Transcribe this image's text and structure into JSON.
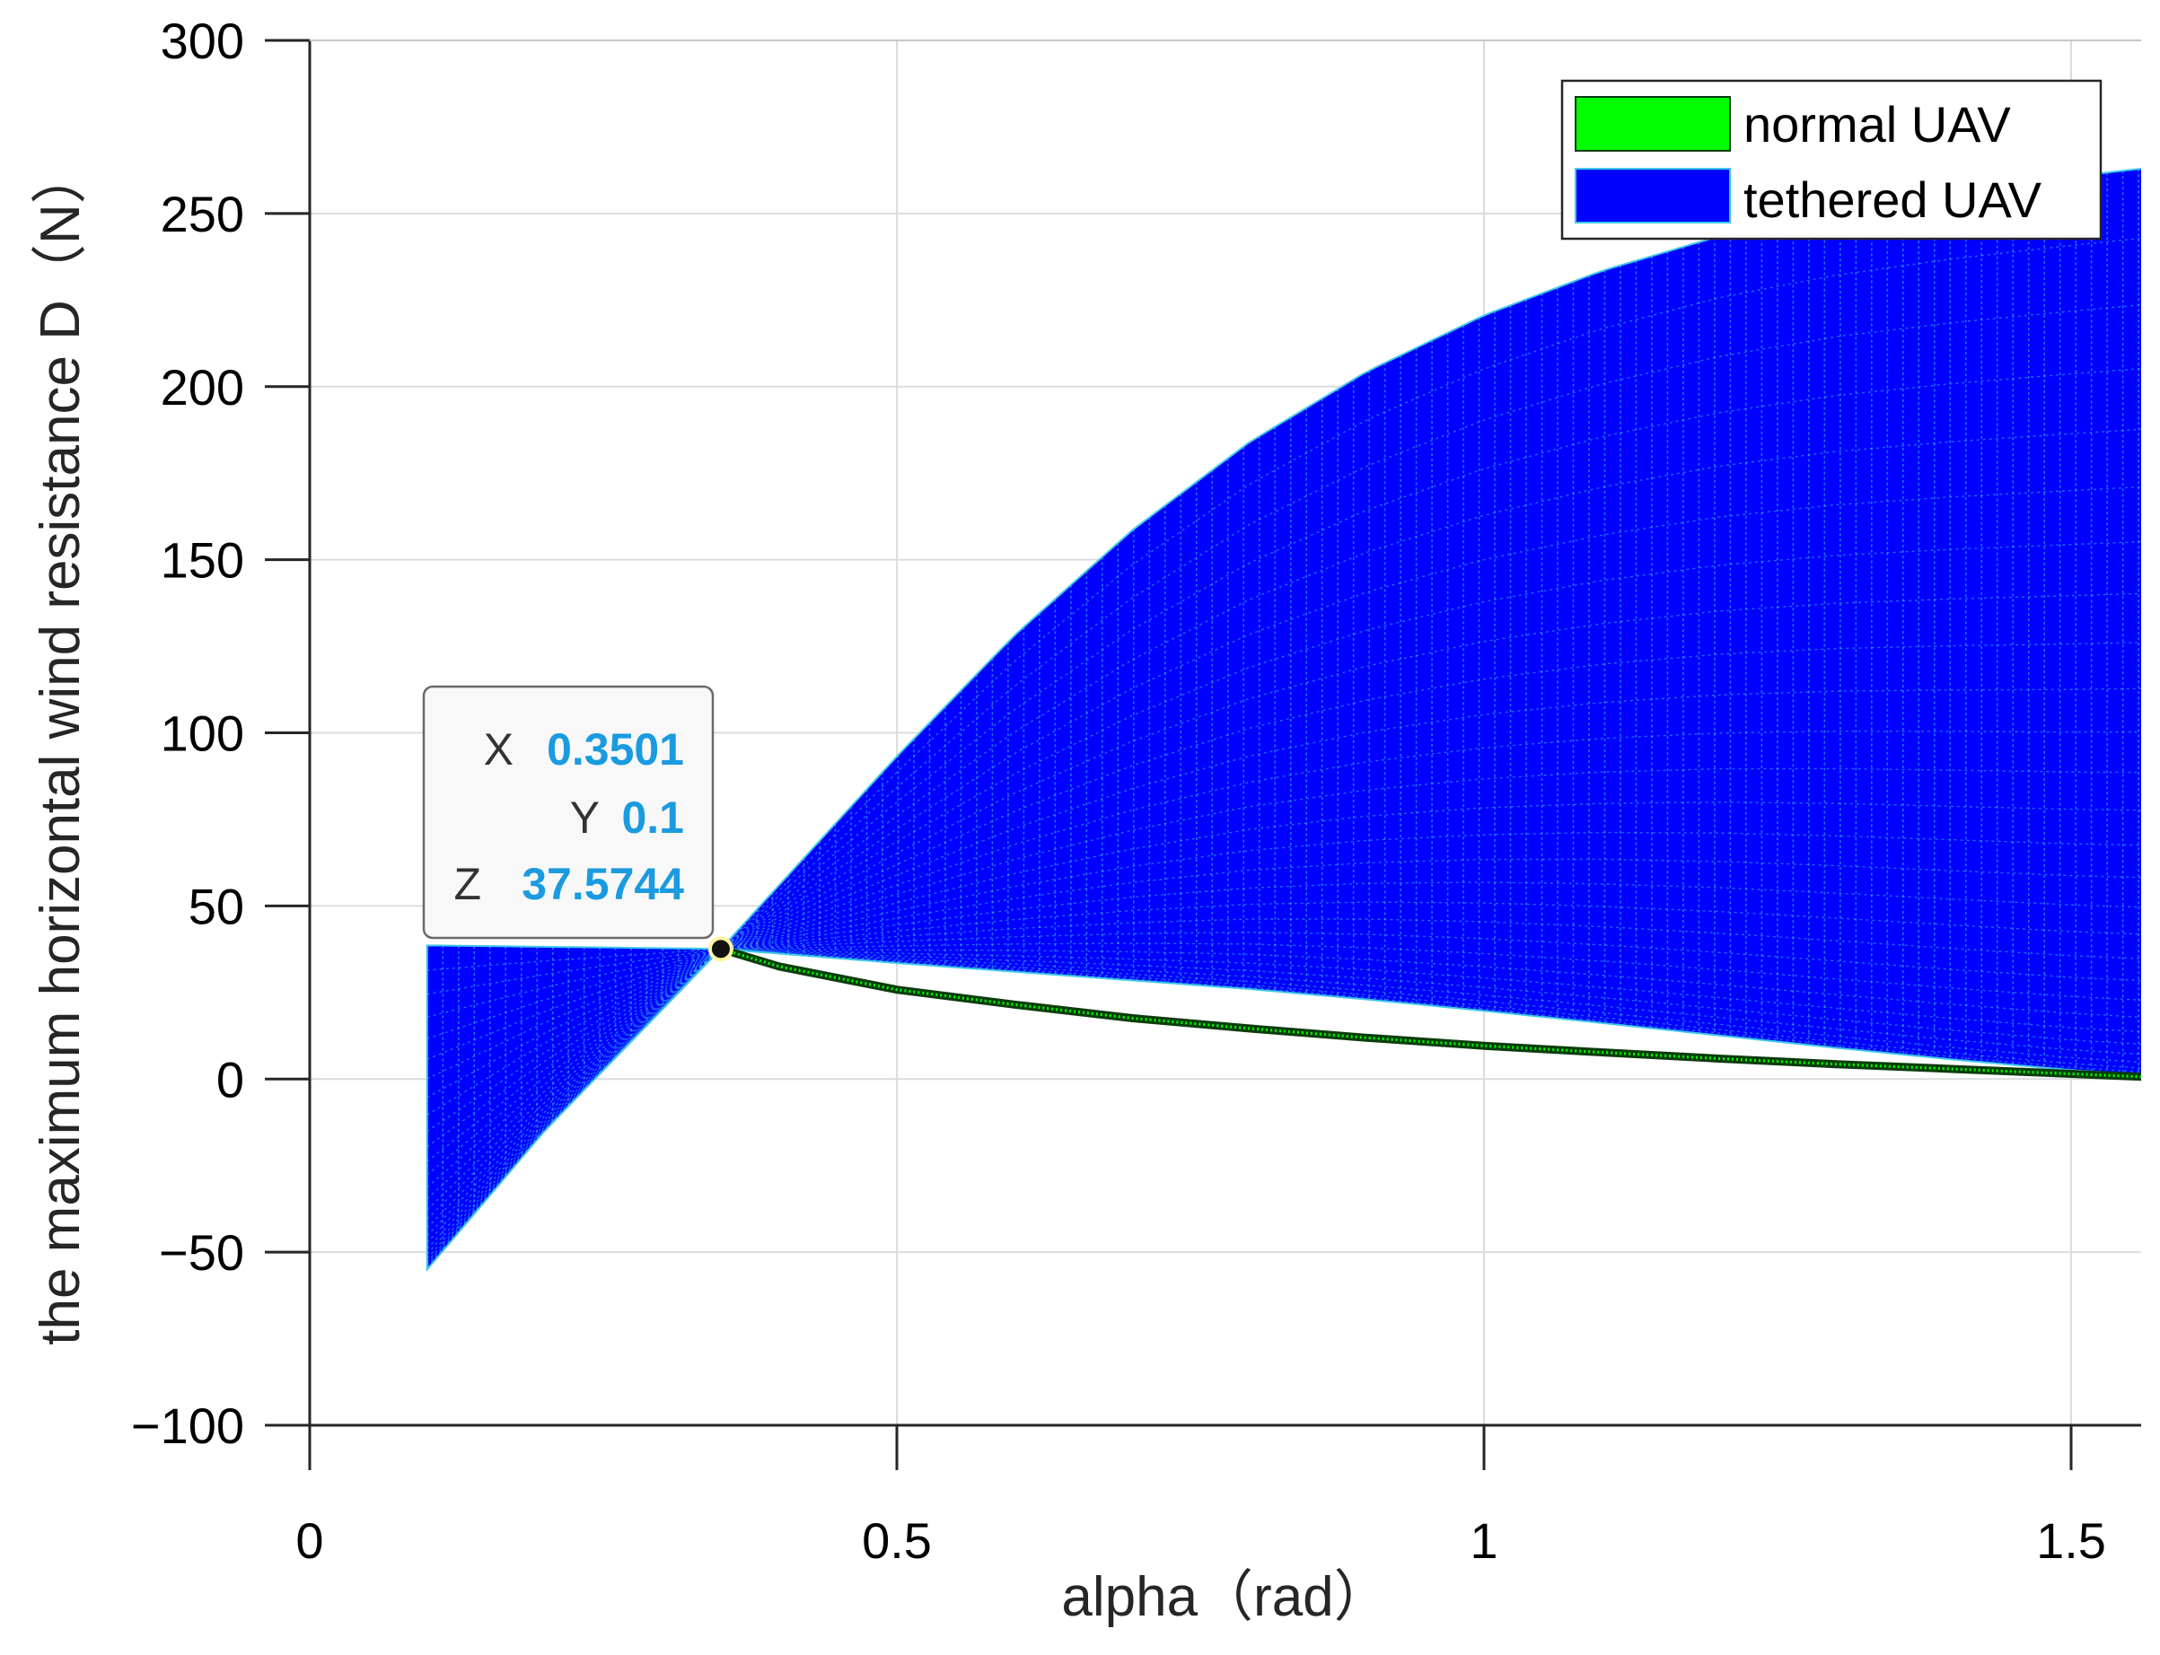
{
  "chart_data": {
    "type": "area",
    "xlabel": "alpha（rad）",
    "ylabel": "the maximum horizontal wind resistance D（N）",
    "xlim": [
      0,
      1.5708
    ],
    "ylim": [
      -100,
      300
    ],
    "xticks": [
      0,
      0.5,
      1,
      1.5
    ],
    "xtick_labels": [
      "0",
      "0.5",
      "1",
      "1.5"
    ],
    "yticks": [
      300,
      250,
      200,
      150,
      100,
      50,
      0,
      -50,
      -100
    ],
    "ytick_labels": [
      "300",
      "250",
      "200",
      "150",
      "100",
      "50",
      "0",
      "−50",
      "−100"
    ],
    "grid": true,
    "legend_position": "top-right",
    "series": [
      {
        "name": "normal UAV",
        "kind": "line",
        "color": "#00ff00",
        "edge_color": "#0b3d0b",
        "x": [
          0.3501,
          0.4,
          0.5,
          0.6,
          0.7,
          0.8,
          0.9,
          1.0,
          1.1,
          1.2,
          1.3,
          1.4,
          1.5,
          1.5708
        ],
        "y": [
          37.57,
          32.5,
          25.8,
          21.5,
          17.6,
          14.6,
          11.9,
          9.6,
          7.7,
          5.9,
          4.3,
          2.9,
          1.5,
          0.5
        ]
      },
      {
        "name": "tethered UAV",
        "kind": "surface",
        "color": "#0000ff",
        "mesh_color": "#3fc8e8",
        "x": [
          0.1,
          0.2,
          0.3,
          0.3501,
          0.5,
          0.6,
          0.7,
          0.8,
          0.9,
          1.0,
          1.1,
          1.2,
          1.3,
          1.4,
          1.5,
          1.5708
        ],
        "upper": [
          38.6,
          38.2,
          37.8,
          37.57,
          93.2,
          128.1,
          158.4,
          183.9,
          204.3,
          220.6,
          233.4,
          243.4,
          250.8,
          256.2,
          260.6,
          263.4
        ],
        "lower": [
          -55.0,
          -15.0,
          20.0,
          37.57,
          33.5,
          31.0,
          28.5,
          26.0,
          23.0,
          19.7,
          16.2,
          12.6,
          9.0,
          5.6,
          2.6,
          1.0
        ]
      }
    ],
    "datatip": {
      "x": 0.3501,
      "y_value": 37.57,
      "x_label": "X",
      "x_value": "0.3501",
      "y_label": "Y",
      "y_text": "0.1",
      "z_label": "Z",
      "z_value": "37.5744"
    }
  }
}
